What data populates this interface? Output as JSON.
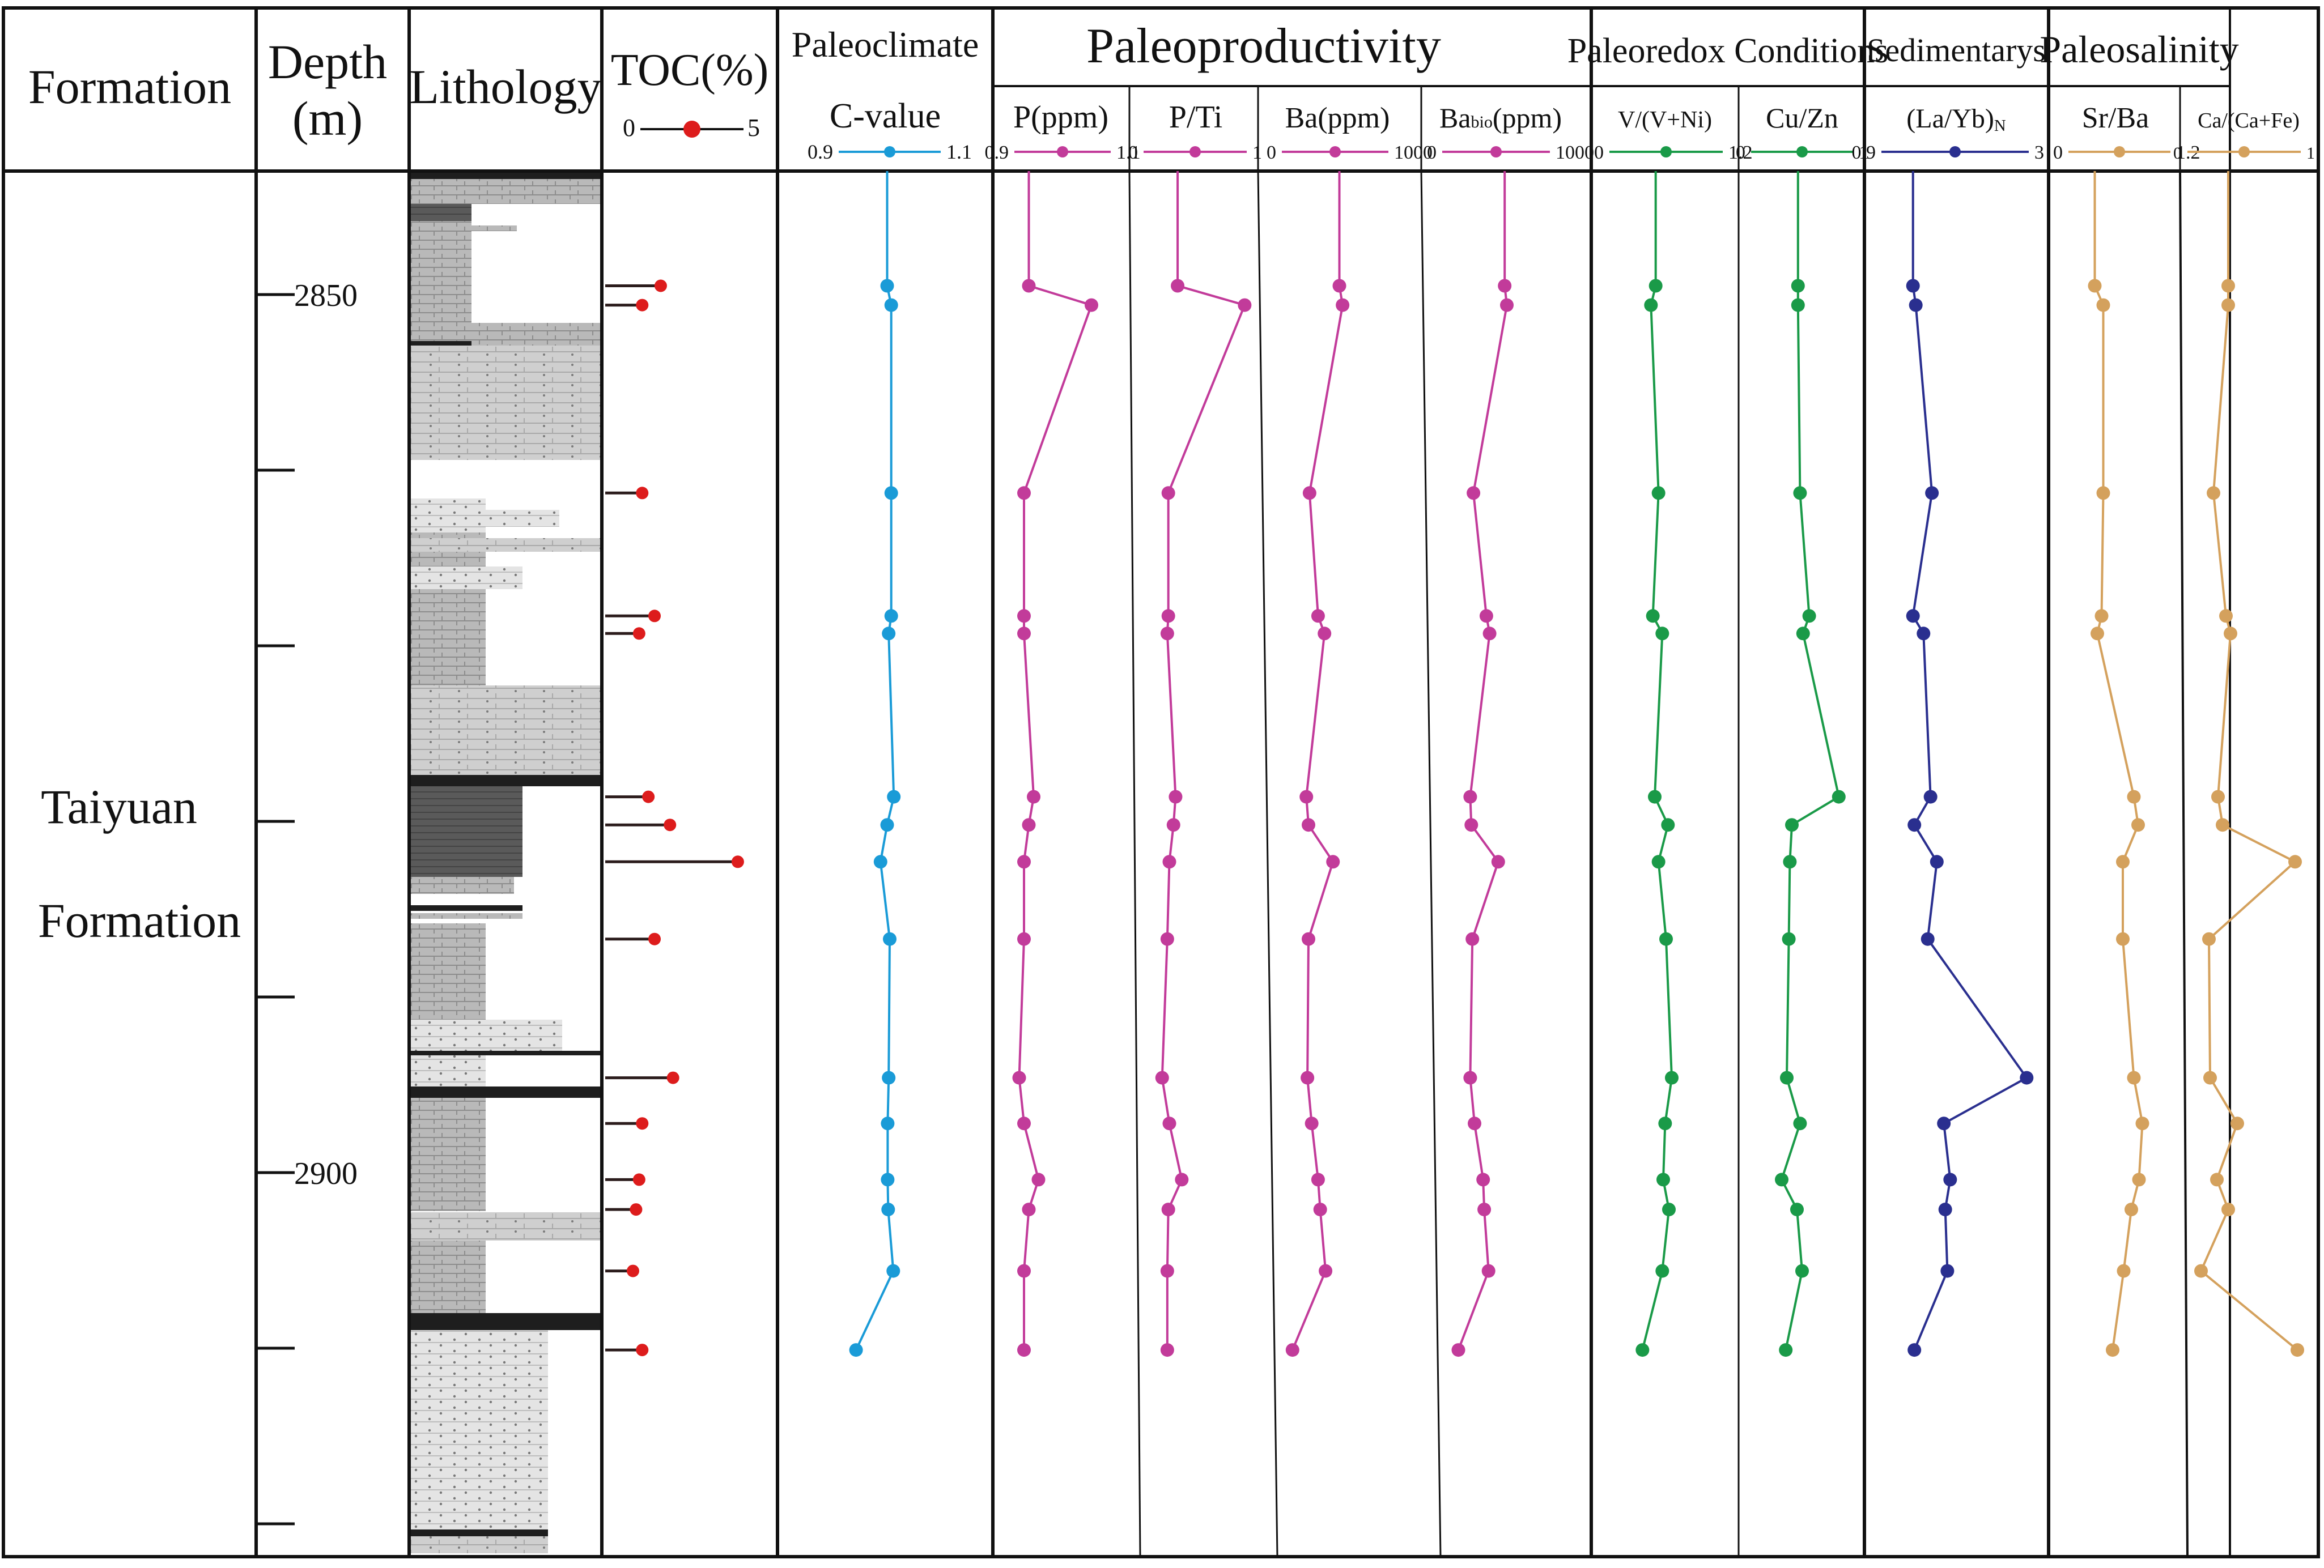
{
  "chart_data": {
    "type": "line",
    "orientation": "vertical-depth-log",
    "formation_header": "Formation",
    "formation_name_line1": "Taiyuan",
    "formation_name_line2": "Formation",
    "depth_header_line1": "Depth",
    "depth_header_line2": "(m)",
    "depth_ticks": [
      2850,
      2900
    ],
    "depth_range": [
      2842,
      2920
    ],
    "lithology_header": "Lithology",
    "toc": {
      "title": "TOC(%)",
      "min_label": "0",
      "max_label": "5",
      "min": 0,
      "max": 5,
      "color": "#dd1c1c"
    },
    "samples_depth": [
      2849.5,
      2850.6,
      2861.3,
      2868.3,
      2869.3,
      2878.6,
      2880.2,
      2882.3,
      2886.7,
      2894.6,
      2897.2,
      2900.4,
      2902.1,
      2905.6,
      2910.1
    ],
    "toc_values": [
      1.8,
      1.2,
      1.2,
      1.6,
      1.1,
      1.4,
      2.1,
      4.3,
      1.6,
      2.2,
      1.2,
      1.1,
      1.0,
      0.9,
      1.2
    ],
    "groups": [
      {
        "title": "Paleoclimate"
      },
      {
        "title": "Paleoproductivity"
      },
      {
        "title_part1": "Paleoredox",
        "title_part2": "Conditions"
      },
      {
        "title": "Sedimentarys"
      },
      {
        "title": "Paleosalinity"
      }
    ],
    "series": [
      {
        "name": "C-value",
        "min_label": "0.9",
        "max_label": "1.1",
        "min": 0.9,
        "max": 1.1,
        "color": "#1a9bd7",
        "values": [
          0.995,
          1.003,
          1.003,
          1.003,
          0.998,
          1.008,
          0.995,
          0.982,
          1.0,
          0.998,
          0.996,
          0.996,
          0.997,
          1.007,
          0.934
        ]
      },
      {
        "name": "P(ppm)",
        "min_label": "0.9",
        "max_label": "1.1",
        "min": 0.9,
        "max": 1.1,
        "color": "#c23b9a",
        "values": [
          0.93,
          1.06,
          0.92,
          0.92,
          0.92,
          0.94,
          0.93,
          0.92,
          0.92,
          0.91,
          0.92,
          0.95,
          0.93,
          0.92,
          0.92
        ]
      },
      {
        "name": "P/Ti",
        "min_label": "0",
        "max_label": "1",
        "min": 0,
        "max": 1,
        "color": "#c23b9a",
        "values": [
          0.33,
          0.98,
          0.24,
          0.24,
          0.23,
          0.31,
          0.29,
          0.25,
          0.23,
          0.18,
          0.25,
          0.37,
          0.24,
          0.23,
          0.23
        ]
      },
      {
        "name": "Ba(ppm)",
        "min_label": "0",
        "max_label": "1000",
        "min": 0,
        "max": 1000,
        "color": "#c23b9a",
        "values": [
          540,
          570,
          260,
          340,
          400,
          230,
          250,
          480,
          250,
          240,
          280,
          340,
          360,
          410,
          100
        ]
      },
      {
        "name": "Babio(ppm)",
        "name_main": "Ba",
        "name_sub": "bio",
        "name_suffix": "(ppm)",
        "min_label": "0",
        "max_label": "1000",
        "min": 0,
        "max": 1000,
        "color": "#c23b9a",
        "values": [
          580,
          600,
          290,
          410,
          440,
          260,
          270,
          520,
          280,
          260,
          300,
          380,
          390,
          430,
          150
        ]
      },
      {
        "name": "V/(V+Ni)",
        "min_label": "0",
        "max_label": "1.2",
        "min": 0,
        "max": 1.2,
        "color": "#1a9a48",
        "values": [
          0.49,
          0.44,
          0.52,
          0.46,
          0.56,
          0.48,
          0.62,
          0.52,
          0.6,
          0.66,
          0.59,
          0.57,
          0.63,
          0.56,
          0.35
        ]
      },
      {
        "name": "Cu/Zn",
        "min_label": "0",
        "max_label": "1",
        "min": 0,
        "max": 1,
        "color": "#1a9a48",
        "values": [
          0.46,
          0.46,
          0.48,
          0.57,
          0.51,
          0.86,
          0.4,
          0.38,
          0.37,
          0.35,
          0.48,
          0.3,
          0.45,
          0.5,
          0.34
        ]
      },
      {
        "name": "(La/Yb)N",
        "name_main": "(La/Yb)",
        "name_sub": "N",
        "min_label": "0.9",
        "max_label": "3",
        "min": 0.9,
        "max": 3,
        "color": "#2a2f8f",
        "values": [
          1.35,
          1.39,
          1.62,
          1.35,
          1.5,
          1.6,
          1.37,
          1.69,
          1.56,
          2.97,
          1.79,
          1.88,
          1.81,
          1.84,
          1.37
        ]
      },
      {
        "name": "Sr/Ba",
        "min_label": "0",
        "max_label": "1.2",
        "min": 0,
        "max": 1.2,
        "color": "#d4a15d",
        "values": [
          0.31,
          0.41,
          0.41,
          0.39,
          0.34,
          0.77,
          0.82,
          0.64,
          0.64,
          0.77,
          0.87,
          0.83,
          0.74,
          0.65,
          0.52
        ]
      },
      {
        "name": "Ca/(Ca+Fe)",
        "min_label": "0",
        "max_label": "1",
        "min": 0,
        "max": 1,
        "color": "#d4a15d",
        "values": [
          0.36,
          0.36,
          0.23,
          0.34,
          0.38,
          0.27,
          0.31,
          0.95,
          0.19,
          0.2,
          0.44,
          0.26,
          0.36,
          0.12,
          0.97
        ]
      }
    ]
  }
}
